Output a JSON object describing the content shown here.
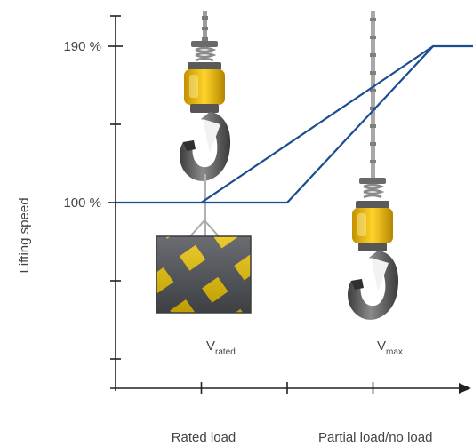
{
  "chart_data": {
    "type": "line",
    "title": "",
    "xlabel": "",
    "ylabel": "Lifting speed",
    "y_ticks": [
      {
        "value": 190,
        "label": "190 %"
      },
      {
        "value": 100,
        "label": "100 %"
      }
    ],
    "x_categories": [
      "Rated load",
      "Partial load/no load"
    ],
    "series": [
      {
        "description": "flat at 100 % up to rated load, then rising to 190 % at partial/no load",
        "points": [
          [
            0,
            100
          ],
          [
            2,
            100
          ],
          [
            3.7,
            190
          ],
          [
            4.2,
            190
          ]
        ]
      },
      {
        "description": "straight line from rated load to partial/no load",
        "points": [
          [
            1,
            100
          ],
          [
            3.7,
            190
          ]
        ]
      }
    ],
    "annotations": [
      {
        "main": "V",
        "sub": "rated"
      },
      {
        "main": "V",
        "sub": "max"
      }
    ],
    "colors": {
      "line": "#1a4e91",
      "axis": "#222222",
      "text": "#444444"
    }
  }
}
